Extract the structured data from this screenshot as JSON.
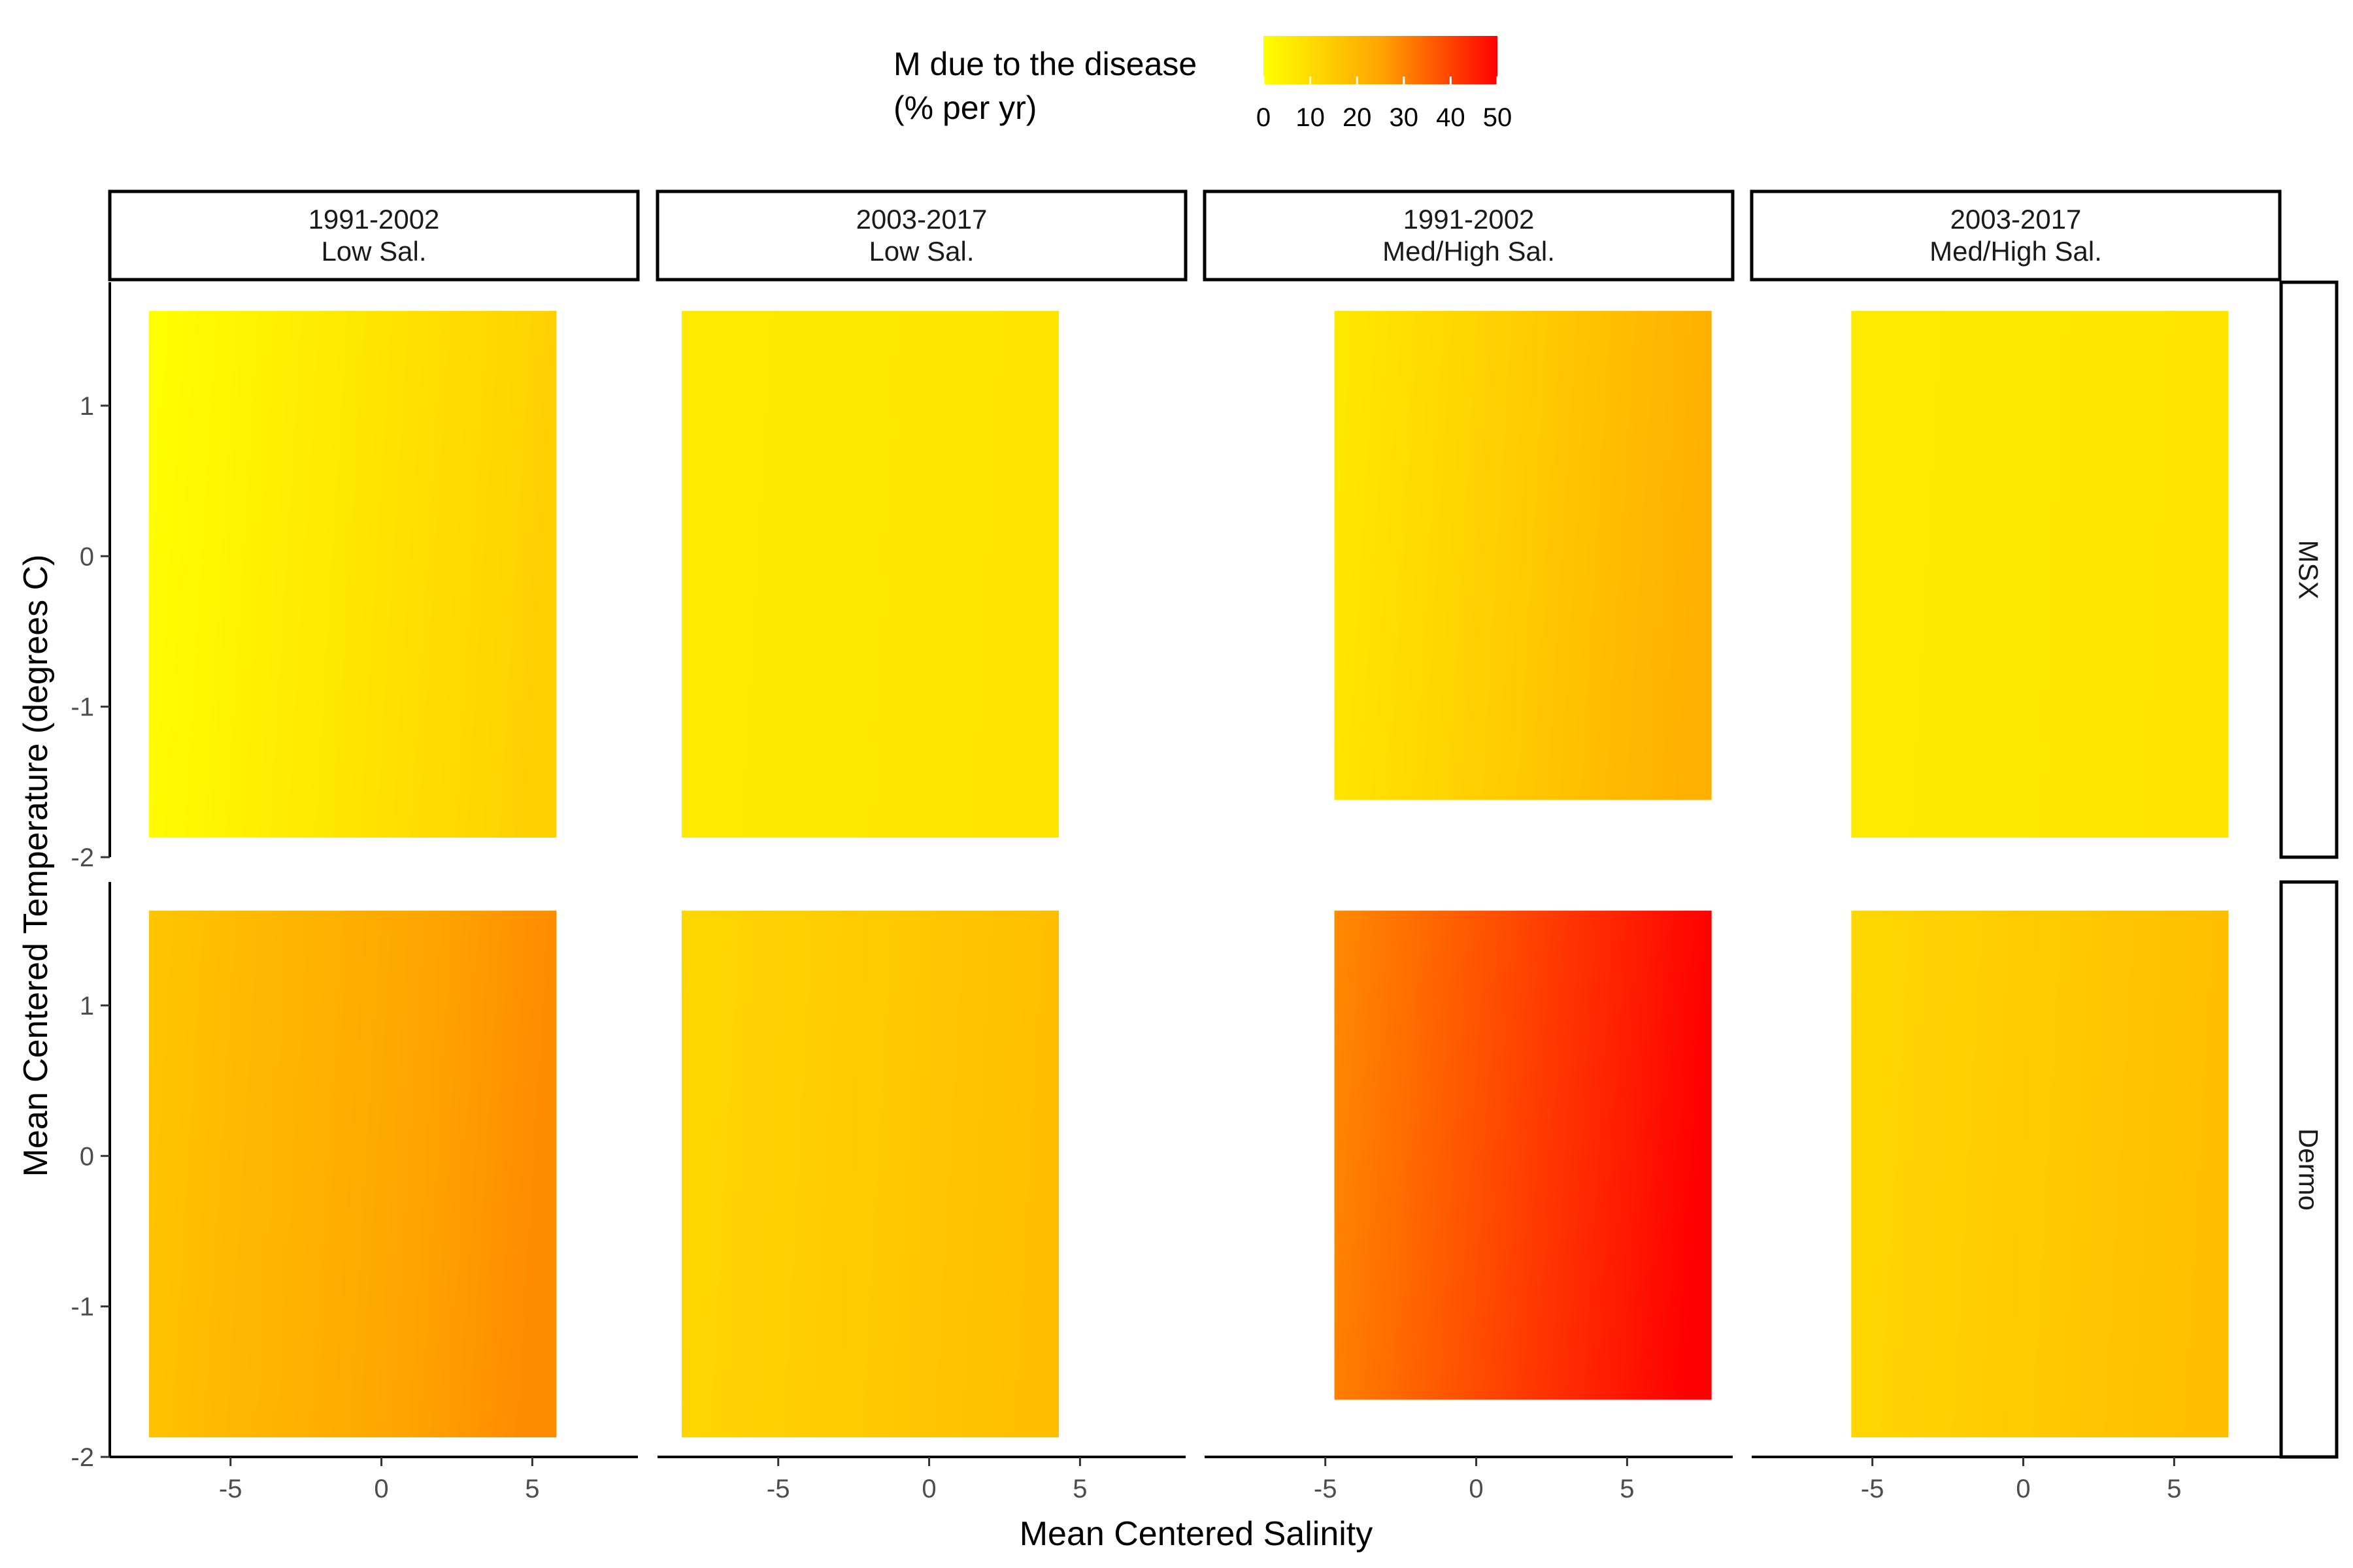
{
  "chart_data": {
    "type": "heatmap",
    "xlabel": "Mean Centered Salinity",
    "ylabel": "Mean Centered Temperature (degrees C)",
    "legend": {
      "title_line1": "M due to the disease",
      "title_line2": "(% per yr)",
      "placement": "top",
      "min": 0,
      "max": 50,
      "ticks": [
        "0",
        "10",
        "20",
        "30",
        "40",
        "50"
      ],
      "colors": [
        "#ffff00",
        "#ffa500",
        "#ff0000"
      ]
    },
    "columns": [
      {
        "line1": "1991-2002",
        "line2": "Low Sal."
      },
      {
        "line1": "2003-2017",
        "line2": "Low Sal."
      },
      {
        "line1": "1991-2002",
        "line2": "Med/High Sal."
      },
      {
        "line1": "2003-2017",
        "line2": "Med/High Sal."
      }
    ],
    "rows": [
      {
        "label": "MSX"
      },
      {
        "label": "Dermo"
      }
    ],
    "x_ticks": [
      -5,
      0,
      5
    ],
    "x_tick_labels": [
      "-5",
      "0",
      "5"
    ],
    "y_ticks": [
      -2,
      -1,
      0,
      1
    ],
    "y_tick_labels": [
      "-2",
      "-1",
      "0",
      "1"
    ],
    "xlim": [
      -9.0,
      8.5
    ],
    "ylim": [
      -2.0,
      1.82
    ],
    "panels": [
      {
        "row": 0,
        "col": 0,
        "x_range": [
          -7.7,
          5.8
        ],
        "y_range": [
          -1.87,
          1.63
        ],
        "m_left": 0,
        "m_right": 13,
        "m_top_adj": 2
      },
      {
        "row": 0,
        "col": 1,
        "x_range": [
          -8.2,
          4.3
        ],
        "y_range": [
          -1.87,
          1.63
        ],
        "m_left": 6,
        "m_right": 7,
        "m_top_adj": 0
      },
      {
        "row": 0,
        "col": 2,
        "x_range": [
          -4.7,
          7.8
        ],
        "y_range": [
          -1.62,
          1.63
        ],
        "m_left": 6,
        "m_right": 22,
        "m_top_adj": 2
      },
      {
        "row": 0,
        "col": 3,
        "x_range": [
          -5.7,
          6.8
        ],
        "y_range": [
          -1.87,
          1.63
        ],
        "m_left": 6,
        "m_right": 7,
        "m_top_adj": 0
      },
      {
        "row": 1,
        "col": 0,
        "x_range": [
          -7.7,
          5.8
        ],
        "y_range": [
          -1.87,
          1.63
        ],
        "m_left": 16,
        "m_right": 29,
        "m_top_adj": 2
      },
      {
        "row": 1,
        "col": 1,
        "x_range": [
          -8.2,
          4.3
        ],
        "y_range": [
          -1.87,
          1.63
        ],
        "m_left": 11,
        "m_right": 18,
        "m_top_adj": 0
      },
      {
        "row": 1,
        "col": 2,
        "x_range": [
          -4.7,
          7.8
        ],
        "y_range": [
          -1.62,
          1.63
        ],
        "m_left": 29,
        "m_right": 50,
        "m_top_adj": 6
      },
      {
        "row": 1,
        "col": 3,
        "x_range": [
          -5.7,
          6.8
        ],
        "y_range": [
          -1.87,
          1.63
        ],
        "m_left": 11,
        "m_right": 18,
        "m_top_adj": 0
      }
    ]
  }
}
